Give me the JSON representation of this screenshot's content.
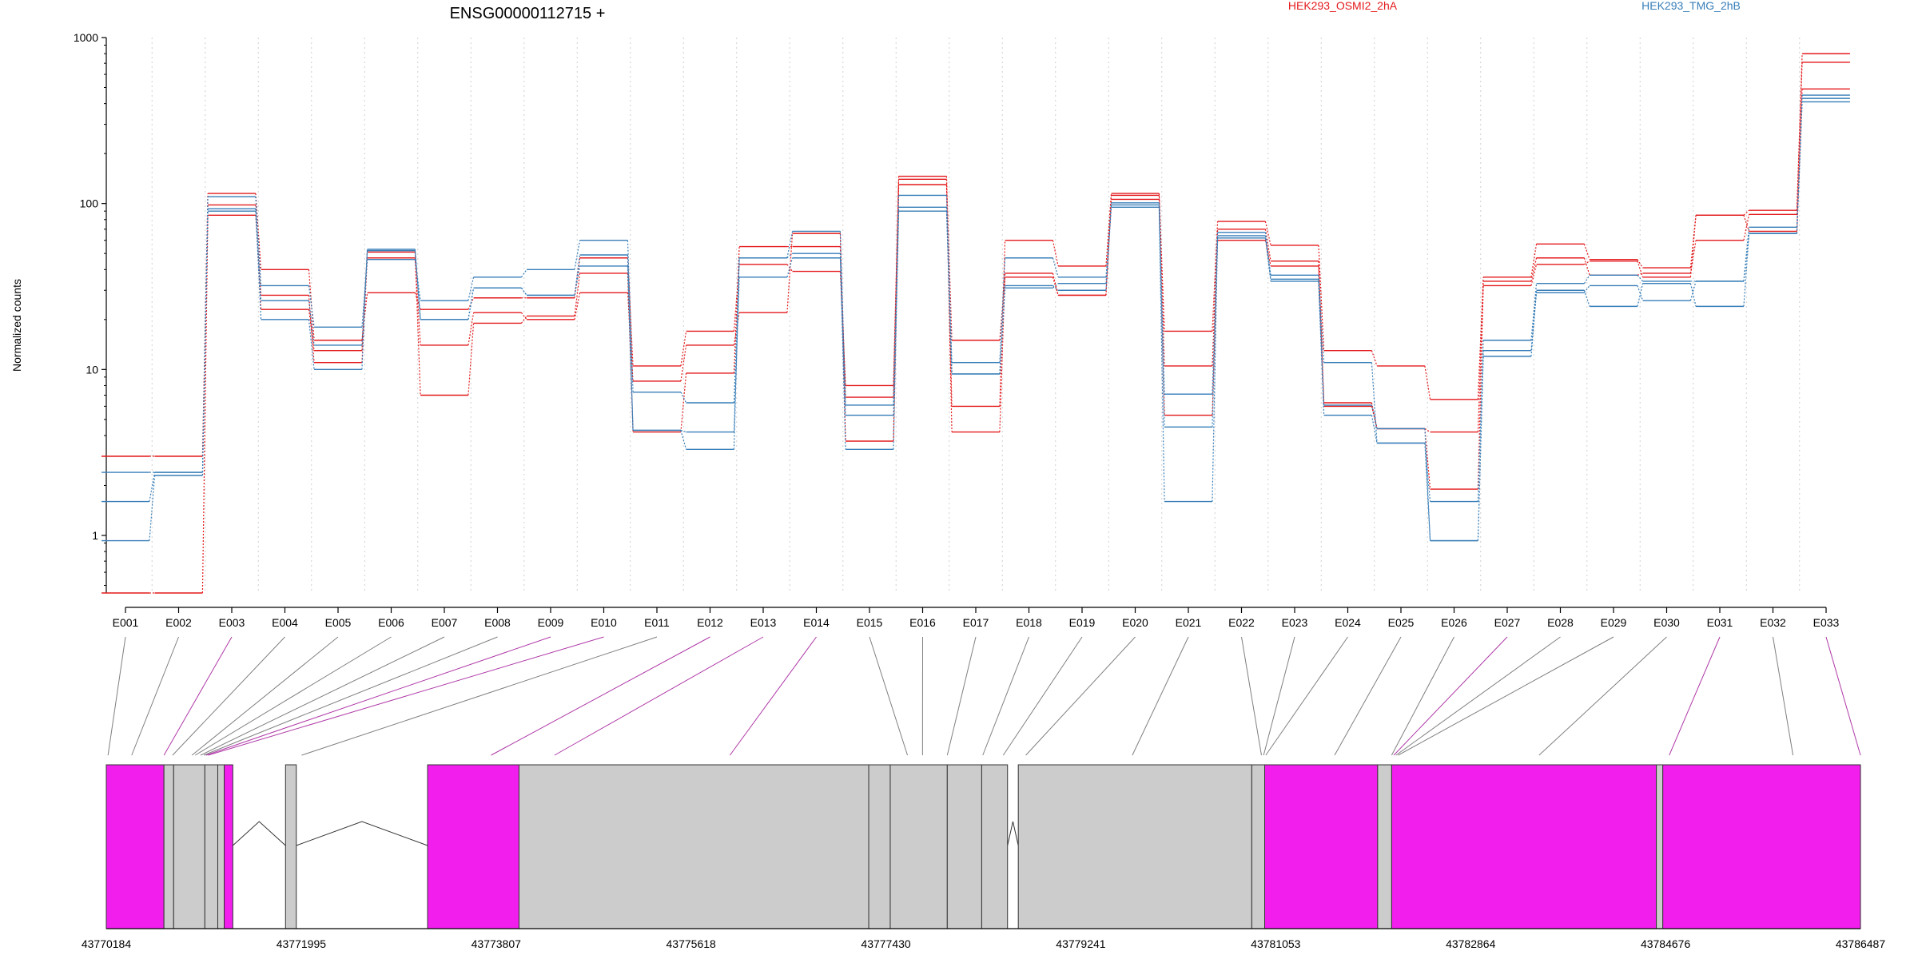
{
  "chart_data": [
    {
      "type": "line",
      "title": "ENSG00000112715 +",
      "xlabel": "",
      "ylabel": "Normalized counts",
      "yscale": "log",
      "ylim": [
        0.45,
        1000
      ],
      "yticks": [
        "1",
        "10",
        "100",
        "1000"
      ],
      "grid": "vertical dotted lines at each exon bin",
      "legend_placement": "top-right, text labels",
      "categories": [
        "E001",
        "E002",
        "E003",
        "E004",
        "E005",
        "E006",
        "E007",
        "E008",
        "E009",
        "E010",
        "E011",
        "E012",
        "E013",
        "E014",
        "E015",
        "E016",
        "E017",
        "E018",
        "E019",
        "E020",
        "E021",
        "E022",
        "E023",
        "E024",
        "E025",
        "E026",
        "E027",
        "E028",
        "E029",
        "E030",
        "E031",
        "E032",
        "E033"
      ],
      "series": [
        {
          "name": "HEK293_OSMI2_2hA",
          "color": "#e41a1c",
          "values": [
            3.0,
            3.0,
            115,
            40,
            15,
            29,
            23,
            27,
            27,
            47,
            10.5,
            17,
            43,
            39,
            8.0,
            146,
            6.0,
            60,
            42,
            115,
            17,
            78,
            56,
            13,
            10.5,
            6.6,
            36,
            57,
            46,
            41,
            85,
            91,
            800
          ]
        },
        {
          "color": "#e41a1c",
          "values": [
            0.45,
            0.45,
            85,
            28,
            11,
            47,
            14,
            22,
            20,
            29,
            8.5,
            14,
            22,
            66,
            3.7,
            130,
            4.2,
            38,
            28,
            106,
            10.5,
            70,
            45,
            6.3,
            4.4,
            4.2,
            34,
            47,
            37,
            38,
            60,
            86,
            710
          ]
        },
        {
          "color": "#e41a1c",
          "values": [
            3.0,
            3.0,
            98,
            23,
            13,
            51,
            7.0,
            19,
            21,
            38,
            4.2,
            9.5,
            55,
            55,
            6.8,
            140,
            15,
            36,
            28,
            112,
            5.3,
            60,
            42,
            6.0,
            4.4,
            1.9,
            32,
            43,
            45,
            36,
            85,
            68,
            490
          ]
        },
        {
          "name": "HEK293_TMG_2hB",
          "color": "#377eb8",
          "values": [
            1.6,
            2.4,
            110,
            32,
            18,
            46,
            26,
            36,
            40,
            60,
            7.3,
            6.3,
            47,
            68,
            6.1,
            112,
            11,
            47,
            36,
            98,
            7.1,
            67,
            37,
            11,
            3.6,
            1.6,
            15,
            33,
            37,
            34,
            34,
            72,
            450
          ]
        },
        {
          "color": "#377eb8",
          "values": [
            0.93,
            2.3,
            93,
            20,
            10,
            53,
            20,
            31,
            28,
            49,
            4.3,
            4.2,
            36,
            47,
            5.3,
            95,
            9.4,
            31,
            33,
            101,
            4.5,
            64,
            34,
            5.3,
            3.6,
            0.93,
            13,
            29,
            32,
            26,
            34,
            66,
            410
          ]
        },
        {
          "color": "#377eb8",
          "values": [
            2.4,
            2.4,
            90,
            26,
            14,
            52,
            20,
            31,
            28,
            42,
            4.3,
            3.3,
            47,
            50,
            3.3,
            90,
            9.4,
            32,
            30,
            95,
            1.6,
            62,
            35,
            6.1,
            4.4,
            0.93,
            12,
            30,
            24,
            33,
            24,
            66,
            430
          ]
        }
      ]
    },
    {
      "type": "gene_model",
      "tick_labels": [
        "43770184",
        "43771995",
        "43773807",
        "43775618",
        "43777430",
        "43779241",
        "43781053",
        "43782864",
        "43784676",
        "43786487"
      ],
      "xlim": [
        43770184,
        43786487
      ],
      "colors": {
        "exon": "#cccccc",
        "highlighted_exon": "#f21eed",
        "line": "#808080",
        "highlighted_line": "#b03aa8"
      },
      "blocks": [
        {
          "start": 43770184,
          "end": 43770720,
          "highlight": true
        },
        {
          "start": 43770720,
          "end": 43770810,
          "highlight": false
        },
        {
          "start": 43770810,
          "end": 43771100,
          "highlight": false
        },
        {
          "start": 43771100,
          "end": 43771220,
          "highlight": false
        },
        {
          "start": 43771220,
          "end": 43771280,
          "highlight": false
        },
        {
          "start": 43771280,
          "end": 43771360,
          "highlight": true
        },
        {
          "start": 43771850,
          "end": 43771950,
          "highlight": false
        },
        {
          "start": 43773170,
          "end": 43774020,
          "highlight": true
        },
        {
          "start": 43774020,
          "end": 43777270,
          "highlight": false
        },
        {
          "start": 43777270,
          "end": 43777470,
          "highlight": false
        },
        {
          "start": 43777470,
          "end": 43778000,
          "highlight": false
        },
        {
          "start": 43778000,
          "end": 43778320,
          "highlight": false
        },
        {
          "start": 43778320,
          "end": 43778560,
          "highlight": false
        },
        {
          "start": 43778660,
          "end": 43780830,
          "highlight": false
        },
        {
          "start": 43780830,
          "end": 43780950,
          "highlight": false
        },
        {
          "start": 43780950,
          "end": 43782000,
          "highlight": true
        },
        {
          "start": 43782000,
          "end": 43782130,
          "highlight": false
        },
        {
          "start": 43782130,
          "end": 43784590,
          "highlight": true
        },
        {
          "start": 43784590,
          "end": 43784650,
          "highlight": false
        },
        {
          "start": 43784650,
          "end": 43786487,
          "highlight": true
        }
      ],
      "introns": [
        [
          43771360,
          43771850
        ],
        [
          43771950,
          43773170
        ],
        [
          43778560,
          43778660
        ]
      ],
      "exon_bin_positions": [
        43770200,
        43770420,
        43770720,
        43770800,
        43770980,
        43771010,
        43771060,
        43771090,
        43771110,
        43771130,
        43772000,
        43773760,
        43774350,
        43775980,
        43777630,
        43777770,
        43778000,
        43778330,
        43778520,
        43778730,
        43779720,
        43780920,
        43780940,
        43780960,
        43781600,
        43782130,
        43782150,
        43782170,
        43782190,
        43783500,
        43784710,
        43785860,
        43786487
      ],
      "highlighted_bins": [
        "E003",
        "E009",
        "E010",
        "E012",
        "E013",
        "E014",
        "E027",
        "E031",
        "E033"
      ]
    }
  ]
}
